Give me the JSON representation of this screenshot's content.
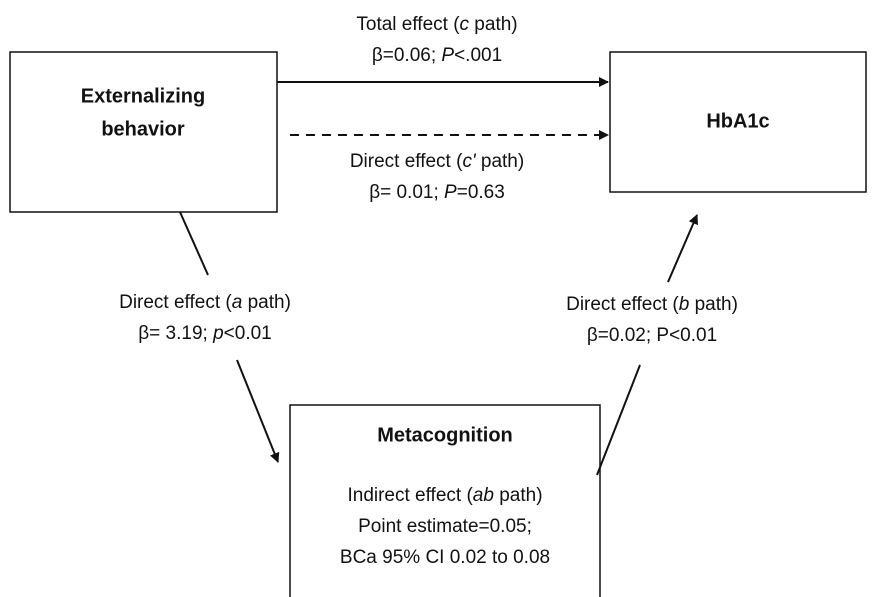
{
  "nodes": [
    {
      "label": [
        "Externalizing",
        "behavior"
      ]
    },
    {
      "label": [
        "HbA1c"
      ]
    },
    {
      "label": [
        "Metacognition"
      ],
      "details": [
        [
          "Indirect effect (",
          "ab",
          " path)"
        ],
        [
          "Point estimate=0.05;"
        ],
        [
          "BCa 95% CI 0.02 to 0.08"
        ]
      ]
    }
  ],
  "edges": [
    {
      "lines": [
        [
          "Total effect (",
          "c",
          " path)"
        ],
        [
          "β=0.06; ",
          "P",
          "<.001"
        ]
      ]
    },
    {
      "lines": [
        [
          "Direct effect (",
          "c'",
          " path)"
        ],
        [
          "β= 0.01; ",
          "P",
          "=0.63"
        ]
      ]
    },
    {
      "lines": [
        [
          "Direct effect (",
          "a",
          " path)"
        ],
        [
          "β= 3.19; ",
          "p",
          "<0.01"
        ]
      ]
    },
    {
      "lines": [
        [
          "Direct effect (",
          "b",
          " path)"
        ],
        [
          "β=0.02; P<0.01"
        ]
      ]
    }
  ]
}
